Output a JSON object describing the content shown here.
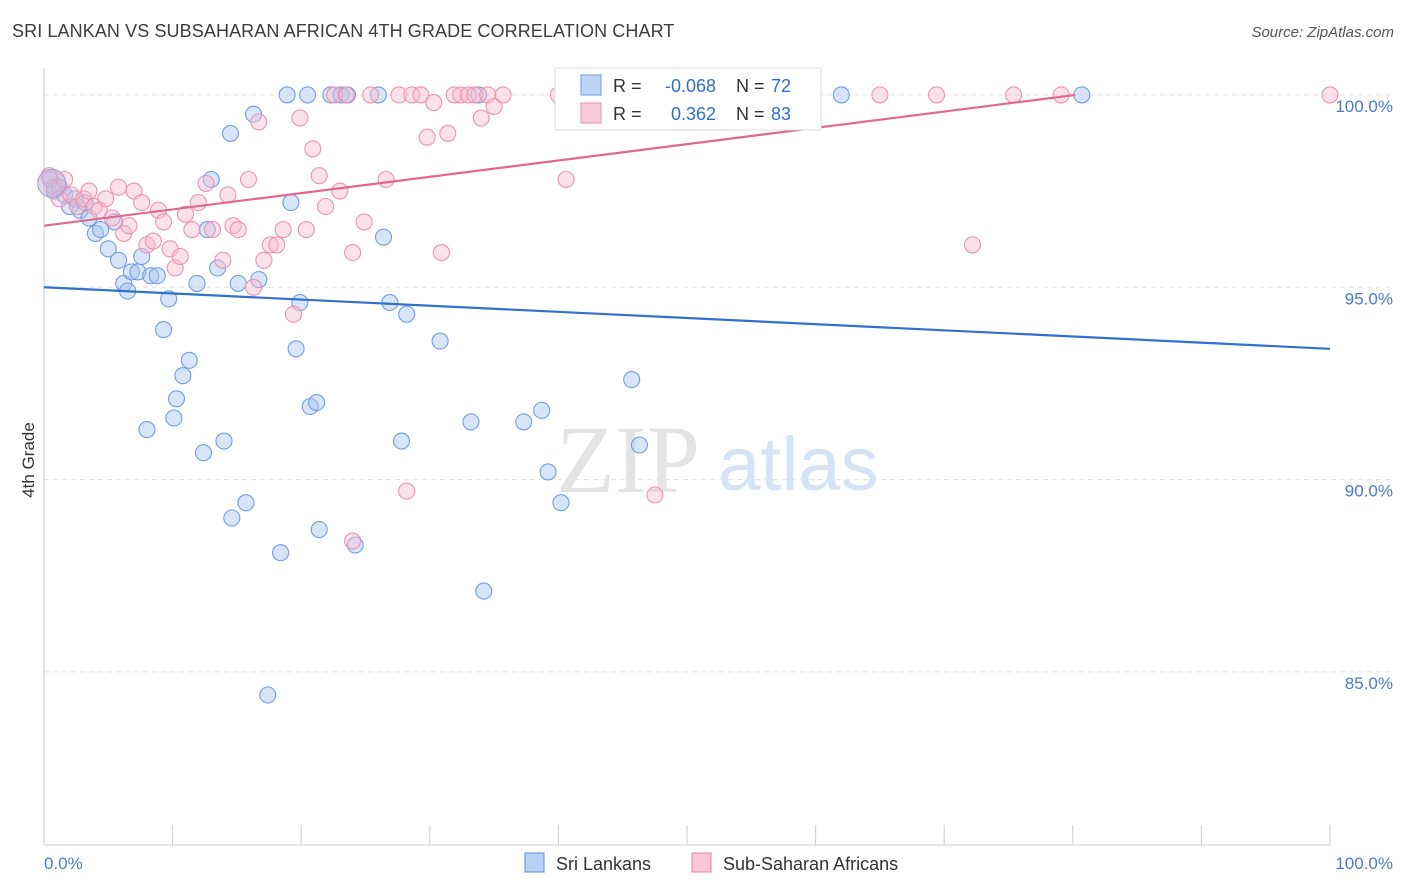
{
  "title": "SRI LANKAN VS SUBSAHARAN AFRICAN 4TH GRADE CORRELATION CHART",
  "source": "Source: ZipAtlas.com",
  "watermark": {
    "zip": "ZIP",
    "atlas": "atlas"
  },
  "chart_data": {
    "type": "scatter",
    "title": "SRI LANKAN VS SUBSAHARAN AFRICAN 4TH GRADE CORRELATION CHART",
    "xlabel": "",
    "ylabel": "4th Grade",
    "xlim": [
      0,
      100
    ],
    "ylim": [
      80.5,
      100.7
    ],
    "x_ticks": [
      0,
      10,
      20,
      30,
      40,
      50,
      60,
      70,
      80,
      90,
      100
    ],
    "x_tick_labels": {
      "0": "0.0%",
      "100": "100.0%"
    },
    "y_ticks": [
      85,
      90,
      95,
      100
    ],
    "y_tick_labels": [
      "85.0%",
      "90.0%",
      "95.0%",
      "100.0%"
    ],
    "grid": true,
    "legend_position": "bottom",
    "stats": [
      {
        "r_label": "R =",
        "r": "-0.068",
        "n_label": "N =",
        "n": "72"
      },
      {
        "r_label": "R =",
        "r": "0.362",
        "n_label": "N =",
        "n": "83"
      }
    ],
    "series": [
      {
        "name": "Sri Lankans",
        "color": "#6f9fe6",
        "fill": "#a8c6f2",
        "trend_color": "#2f72cc",
        "trend": [
          [
            0,
            95.0
          ],
          [
            100,
            93.4
          ]
        ],
        "points": [
          [
            0.5,
            97.8
          ],
          [
            0.8,
            97.5
          ],
          [
            1.2,
            97.6
          ],
          [
            1.6,
            97.4
          ],
          [
            2.0,
            97.1
          ],
          [
            2.4,
            97.3
          ],
          [
            2.8,
            97.0
          ],
          [
            3.2,
            97.2
          ],
          [
            3.5,
            96.8
          ],
          [
            4.0,
            96.4
          ],
          [
            4.4,
            96.5
          ],
          [
            5.0,
            96.0
          ],
          [
            5.5,
            96.7
          ],
          [
            5.8,
            95.7
          ],
          [
            6.2,
            95.1
          ],
          [
            6.5,
            94.9
          ],
          [
            6.8,
            95.4
          ],
          [
            7.3,
            95.4
          ],
          [
            7.6,
            95.8
          ],
          [
            8.3,
            95.3
          ],
          [
            8.8,
            95.3
          ],
          [
            9.3,
            93.9
          ],
          [
            9.7,
            94.7
          ],
          [
            10.1,
            91.6
          ],
          [
            10.3,
            92.1
          ],
          [
            10.8,
            92.7
          ],
          [
            11.3,
            93.1
          ],
          [
            8.0,
            91.3
          ],
          [
            11.9,
            95.1
          ],
          [
            12.7,
            96.5
          ],
          [
            12.4,
            90.7
          ],
          [
            13.5,
            95.5
          ],
          [
            14.0,
            91.0
          ],
          [
            14.5,
            99.0
          ],
          [
            14.6,
            89.0
          ],
          [
            15.1,
            95.1
          ],
          [
            15.7,
            89.4
          ],
          [
            16.3,
            99.5
          ],
          [
            16.7,
            95.2
          ],
          [
            17.4,
            84.4
          ],
          [
            18.4,
            88.1
          ],
          [
            18.9,
            100.0
          ],
          [
            19.2,
            97.2
          ],
          [
            19.6,
            93.4
          ],
          [
            19.9,
            94.6
          ],
          [
            20.5,
            100.0
          ],
          [
            20.7,
            91.9
          ],
          [
            21.2,
            92.0
          ],
          [
            21.4,
            88.7
          ],
          [
            22.3,
            100.0
          ],
          [
            23.1,
            100.0
          ],
          [
            23.6,
            100.0
          ],
          [
            24.2,
            88.3
          ],
          [
            26.0,
            100.0
          ],
          [
            26.4,
            96.3
          ],
          [
            26.9,
            94.6
          ],
          [
            27.8,
            91.0
          ],
          [
            28.2,
            94.3
          ],
          [
            30.8,
            93.6
          ],
          [
            33.2,
            91.5
          ],
          [
            33.8,
            100.0
          ],
          [
            34.2,
            87.1
          ],
          [
            37.3,
            91.5
          ],
          [
            38.7,
            91.8
          ],
          [
            39.2,
            90.2
          ],
          [
            40.2,
            89.4
          ],
          [
            41.3,
            100.0
          ],
          [
            45.7,
            92.6
          ],
          [
            46.3,
            90.9
          ],
          [
            62.0,
            100.0
          ],
          [
            80.7,
            100.0
          ],
          [
            13.0,
            97.8
          ]
        ]
      },
      {
        "name": "Sub-Saharan Africans",
        "color": "#ee93b0",
        "fill": "#f6bccf",
        "trend_color": "#e0688f",
        "trend": [
          [
            0,
            96.6
          ],
          [
            80.2,
            100.0
          ]
        ],
        "points": [
          [
            0.4,
            97.9
          ],
          [
            0.8,
            97.6
          ],
          [
            1.2,
            97.3
          ],
          [
            1.6,
            97.8
          ],
          [
            2.1,
            97.4
          ],
          [
            2.6,
            97.1
          ],
          [
            3.1,
            97.3
          ],
          [
            3.5,
            97.5
          ],
          [
            3.9,
            97.1
          ],
          [
            4.3,
            97.0
          ],
          [
            4.8,
            97.3
          ],
          [
            5.3,
            96.8
          ],
          [
            5.8,
            97.6
          ],
          [
            6.2,
            96.4
          ],
          [
            6.6,
            96.6
          ],
          [
            7.0,
            97.5
          ],
          [
            7.6,
            97.2
          ],
          [
            8.0,
            96.1
          ],
          [
            8.5,
            96.2
          ],
          [
            8.9,
            97.0
          ],
          [
            9.3,
            96.7
          ],
          [
            9.8,
            96.0
          ],
          [
            10.2,
            95.5
          ],
          [
            10.6,
            95.8
          ],
          [
            11.0,
            96.9
          ],
          [
            11.5,
            96.5
          ],
          [
            12.0,
            97.2
          ],
          [
            12.6,
            97.7
          ],
          [
            13.1,
            96.5
          ],
          [
            13.9,
            95.7
          ],
          [
            14.3,
            97.4
          ],
          [
            14.7,
            96.6
          ],
          [
            15.1,
            96.5
          ],
          [
            15.9,
            97.8
          ],
          [
            16.3,
            95.0
          ],
          [
            16.7,
            99.3
          ],
          [
            17.1,
            95.7
          ],
          [
            17.6,
            96.1
          ],
          [
            18.1,
            96.1
          ],
          [
            18.6,
            96.5
          ],
          [
            19.4,
            94.3
          ],
          [
            19.9,
            99.4
          ],
          [
            20.4,
            96.5
          ],
          [
            20.9,
            98.6
          ],
          [
            21.4,
            97.9
          ],
          [
            21.9,
            97.1
          ],
          [
            22.6,
            100.0
          ],
          [
            23.0,
            97.5
          ],
          [
            23.5,
            100.0
          ],
          [
            24.0,
            95.9
          ],
          [
            24.9,
            96.7
          ],
          [
            25.4,
            100.0
          ],
          [
            26.6,
            97.8
          ],
          [
            27.6,
            100.0
          ],
          [
            28.2,
            89.7
          ],
          [
            28.6,
            100.0
          ],
          [
            29.3,
            100.0
          ],
          [
            29.8,
            98.9
          ],
          [
            30.3,
            99.8
          ],
          [
            30.9,
            95.9
          ],
          [
            31.4,
            99.0
          ],
          [
            31.9,
            100.0
          ],
          [
            32.4,
            100.0
          ],
          [
            33.0,
            100.0
          ],
          [
            33.5,
            100.0
          ],
          [
            34.0,
            99.4
          ],
          [
            34.5,
            100.0
          ],
          [
            35.0,
            99.7
          ],
          [
            35.7,
            100.0
          ],
          [
            40.0,
            100.0
          ],
          [
            40.6,
            97.8
          ],
          [
            42.5,
            100.0
          ],
          [
            46.8,
            100.0
          ],
          [
            47.5,
            89.6
          ],
          [
            56.3,
            100.0
          ],
          [
            58.7,
            100.0
          ],
          [
            65.0,
            100.0
          ],
          [
            69.4,
            100.0
          ],
          [
            72.2,
            96.1
          ],
          [
            75.4,
            100.0
          ],
          [
            79.1,
            100.0
          ],
          [
            100.0,
            100.0
          ],
          [
            24.0,
            88.4
          ]
        ]
      }
    ]
  }
}
